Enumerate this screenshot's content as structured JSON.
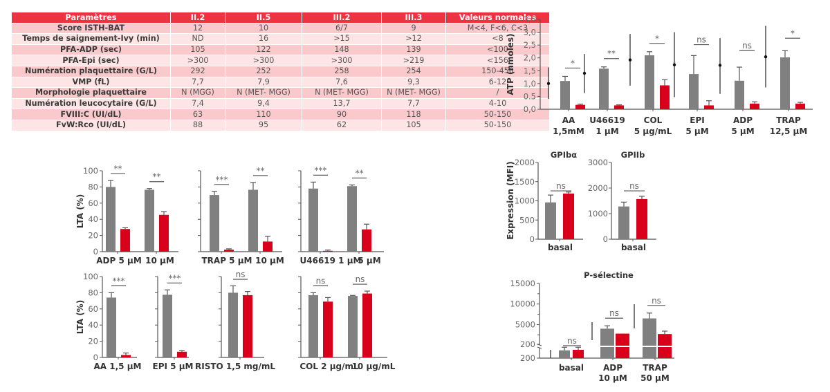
{
  "table": {
    "headers": [
      "Paramètres",
      "II.2",
      "II.5",
      "III.2",
      "III.3",
      "Valeurs normales"
    ],
    "rows": [
      [
        "Score ISTH-BAT",
        "12",
        "10",
        "6/7",
        "9",
        "M<4, F<6, C<3"
      ],
      [
        "Temps de saignement-Ivy (min)",
        "ND",
        "16",
        ">15",
        ">12",
        "<8"
      ],
      [
        "PFA-ADP (sec)",
        "105",
        "122",
        "148",
        "139",
        "<100"
      ],
      [
        "PFA-Epi (sec)",
        ">300",
        ">300",
        ">300",
        ">219",
        "<156"
      ],
      [
        "Numération plaquettaire (G/L)",
        "292",
        "252",
        "258",
        "254",
        "150-450"
      ],
      [
        "VMP (fL)",
        "7,7",
        "7,9",
        "7,6",
        "9,3",
        "6-12"
      ],
      [
        "Morphologie plaquettaire",
        "N (MGG)",
        "N (MET- MGG)",
        "N (MET- MGG)",
        "N (MET- MGG)",
        "/"
      ],
      [
        "Numération leucocytaire (G/L)",
        "7,4",
        "9,4",
        "13,7",
        "7,7",
        "4-10"
      ],
      [
        "FVIII:C (UI/dL)",
        "63",
        "110",
        "90",
        "118",
        "50-150"
      ],
      [
        "FvW:Rco (UI/dL)",
        "88",
        "95",
        "62",
        "105",
        "50-150"
      ]
    ]
  },
  "colors": {
    "control": "#808080",
    "patient": "#d9001b",
    "header": "#ee3340",
    "row_odd": "#f9c9cc",
    "row_even": "#fde5e6"
  },
  "chart_data": [
    {
      "id": "atp",
      "type": "bar",
      "title": "",
      "ylabel": "ATP (nmoles)",
      "ylim": [
        0,
        3.5
      ],
      "yticks": [
        "0,0",
        "0.5",
        "1,0",
        "1,5",
        "2,0",
        "2,5",
        "3,0",
        "3,5"
      ],
      "categories": [
        [
          "AA",
          "1,5mM"
        ],
        [
          "U46619",
          "1 µM"
        ],
        [
          "COL",
          "5 µg/mL"
        ],
        [
          "EPI",
          "5 µM"
        ],
        [
          "ADP",
          "5 µM"
        ],
        [
          "TRAP",
          "12,5 µM"
        ]
      ],
      "reference_range": [
        {
          "mean": 1.0,
          "low": 0.4,
          "high": 1.63
        },
        {
          "mean": 1.4,
          "low": 0.63,
          "high": 2.15
        },
        {
          "mean": 1.92,
          "low": 0.92,
          "high": 2.93
        },
        {
          "mean": 1.73,
          "low": 0.47,
          "high": 3.0
        },
        {
          "mean": 1.71,
          "low": 0.6,
          "high": 2.77
        },
        {
          "mean": 2.04,
          "low": 0.85,
          "high": 3.25
        }
      ],
      "series": [
        {
          "name": "control",
          "values": [
            1.1,
            1.58,
            2.1,
            1.37,
            1.11,
            2.02
          ],
          "errors": [
            0.18,
            0.07,
            0.14,
            0.72,
            0.53,
            0.26
          ]
        },
        {
          "name": "patient",
          "values": [
            0.17,
            0.15,
            0.93,
            0.15,
            0.22,
            0.22
          ],
          "errors": [
            0.03,
            0.02,
            0.22,
            0.18,
            0.07,
            0.05
          ]
        }
      ],
      "significance": [
        "*",
        "**",
        "*",
        "ns",
        "ns",
        "*"
      ]
    },
    {
      "id": "lta-row1",
      "type": "bar",
      "ylabel": "LTA (%)",
      "ylim": [
        0,
        100
      ],
      "yticks": [
        "0",
        "20",
        "40",
        "60",
        "80",
        "100"
      ],
      "panels": [
        {
          "labels": [
            "ADP 5 µM",
            "10 µM"
          ],
          "control": [
            80,
            76.5
          ],
          "control_err": [
            8,
            1.5
          ],
          "patient": [
            28,
            45.5
          ],
          "patient_err": [
            1.5,
            4
          ],
          "significance": [
            "**",
            "**"
          ]
        },
        {
          "labels": [
            "TRAP 5 µM",
            "10 µM"
          ],
          "control": [
            70,
            76.5
          ],
          "control_err": [
            4.5,
            9
          ],
          "patient": [
            2.5,
            12.5
          ],
          "patient_err": [
            1,
            6.5
          ],
          "significance": [
            "***",
            "**"
          ]
        },
        {
          "labels": [
            "U46619 1 µM",
            "5 µM"
          ],
          "control": [
            78,
            81
          ],
          "control_err": [
            8,
            1.5
          ],
          "patient": [
            1,
            27.5
          ],
          "patient_err": [
            1,
            6.5
          ],
          "significance": [
            "***",
            "**"
          ]
        }
      ]
    },
    {
      "id": "lta-row2",
      "type": "bar",
      "ylabel": "LTA (%)",
      "ylim": [
        0,
        100
      ],
      "yticks": [
        "0",
        "20",
        "40",
        "60",
        "80",
        "100"
      ],
      "panels": [
        {
          "labels": [
            "AA 1,5 µM"
          ],
          "control": [
            74
          ],
          "control_err": [
            6
          ],
          "patient": [
            3
          ],
          "patient_err": [
            2.5
          ],
          "significance": [
            "***"
          ]
        },
        {
          "labels": [
            "EPI 5 µM"
          ],
          "control": [
            77.5
          ],
          "control_err": [
            6
          ],
          "patient": [
            7
          ],
          "patient_err": [
            1.5
          ],
          "significance": [
            "***"
          ]
        },
        {
          "labels": [
            "RISTO 1,5 mg/mL"
          ],
          "control": [
            80
          ],
          "control_err": [
            8.5
          ],
          "patient": [
            77
          ],
          "patient_err": [
            4.5
          ],
          "significance": [
            "ns"
          ]
        },
        {
          "labels": [
            "COL 2 µg/mL",
            "10 µg/mL"
          ],
          "control": [
            77,
            76
          ],
          "control_err": [
            3,
            0.7
          ],
          "patient": [
            69,
            79
          ],
          "patient_err": [
            5,
            3
          ],
          "significance": [
            "ns",
            "ns"
          ]
        }
      ]
    },
    {
      "id": "gp",
      "type": "bar",
      "ylabel": "Expression (MFI)",
      "panels": [
        {
          "title": "GPIbα",
          "ylim": [
            0,
            2000
          ],
          "yticks": [
            "0",
            "500",
            "1000",
            "1500",
            "2000"
          ],
          "labels": [
            "basal"
          ],
          "control": [
            960
          ],
          "control_err": [
            190
          ],
          "patient": [
            1190
          ],
          "patient_err": [
            40
          ],
          "significance": [
            "ns"
          ]
        },
        {
          "title": "GPIIb",
          "ylim": [
            0,
            3000
          ],
          "yticks": [
            "0",
            "1000",
            "2000",
            "3000"
          ],
          "labels": [
            "basal"
          ],
          "control": [
            1280
          ],
          "control_err": [
            170
          ],
          "patient": [
            1570
          ],
          "patient_err": [
            110
          ],
          "significance": [
            "ns"
          ]
        }
      ]
    },
    {
      "id": "psel",
      "type": "bar",
      "title": "P-sélectine",
      "yticks_upper": [
        "200",
        "5000",
        "10000",
        "15000"
      ],
      "ytick_lower": "200",
      "categories": [
        [
          "basal"
        ],
        [
          "ADP",
          "10 µM"
        ],
        [
          "TRAP",
          "50 µM"
        ]
      ],
      "series": [
        {
          "name": "control",
          "values": [
            150,
            4000,
            6500
          ],
          "errors": [
            60,
            700,
            1300
          ]
        },
        {
          "name": "patient",
          "values": [
            160,
            2800,
            2700
          ],
          "errors": [
            50,
            0,
            700
          ]
        }
      ],
      "significance": [
        "ns",
        "ns",
        "ns"
      ]
    }
  ]
}
